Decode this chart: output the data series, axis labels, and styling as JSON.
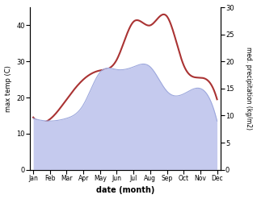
{
  "months": [
    "Jan",
    "Feb",
    "Mar",
    "Apr",
    "May",
    "Jun",
    "Jul",
    "Aug",
    "Sep",
    "Oct",
    "Nov",
    "Dec"
  ],
  "month_positions": [
    0,
    1,
    2,
    3,
    4,
    5,
    6,
    7,
    8,
    9,
    10,
    11
  ],
  "temp": [
    14.5,
    14.0,
    19.0,
    25.0,
    27.5,
    30.5,
    41.0,
    40.5,
    42.0,
    29.0,
    25.5,
    19.5,
    14.5
  ],
  "precip": [
    9.5,
    9.0,
    9.5,
    12.0,
    18.0,
    18.0,
    19.0,
    19.5,
    14.5,
    14.0,
    15.0,
    9.0
  ],
  "temp_smooth_x": [
    0,
    0.5,
    1,
    1.5,
    2,
    2.5,
    3,
    3.5,
    4,
    4.5,
    5,
    5.5,
    6,
    6.5,
    7,
    7.5,
    8,
    8.5,
    9,
    9.5,
    10,
    10.5,
    11
  ],
  "temp_color": "#aa3333",
  "precip_fill_color": "#c5caee",
  "precip_edge_color": "#9da8dd",
  "ylabel_left": "max temp (C)",
  "ylabel_right": "med. precipitation (kg/m2)",
  "xlabel": "date (month)",
  "ylim_left": [
    0,
    45
  ],
  "ylim_right": [
    0,
    30
  ],
  "yticks_left": [
    0,
    10,
    20,
    30,
    40
  ],
  "yticks_right": [
    0,
    5,
    10,
    15,
    20,
    25,
    30
  ],
  "background_color": "#ffffff"
}
